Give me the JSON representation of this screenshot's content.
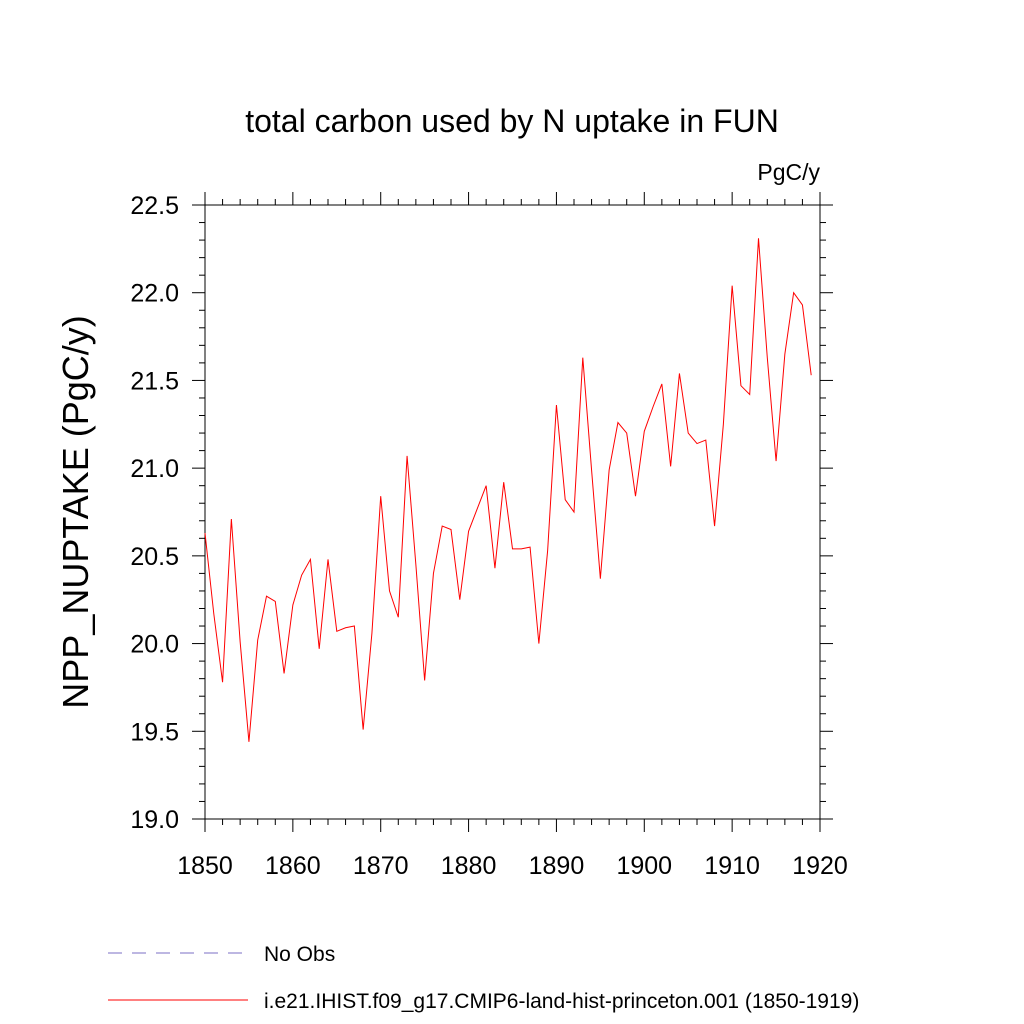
{
  "chart_data": {
    "type": "line",
    "title": "total carbon used by N uptake in FUN",
    "units": "PgC/y",
    "xlabel": "",
    "ylabel": "NPP_NUPTAKE  (PgC/y)",
    "xlim": [
      1850,
      1920
    ],
    "ylim": [
      19.0,
      22.5
    ],
    "xticks": [
      1850,
      1860,
      1870,
      1880,
      1890,
      1900,
      1910,
      1920
    ],
    "yticks": [
      19.0,
      19.5,
      20.0,
      20.5,
      21.0,
      21.5,
      22.0,
      22.5
    ],
    "ytick_labels": [
      "19.0",
      "19.5",
      "20.0",
      "20.5",
      "21.0",
      "21.5",
      "22.0",
      "22.5"
    ],
    "grid": false,
    "legend": "bottom",
    "series": [
      {
        "name": "No Obs",
        "color": "#7b6fc4",
        "dash": "dashed",
        "x": [],
        "values": []
      },
      {
        "name": "i.e21.IHIST.f09_g17.CMIP6-land-hist-princeton.001 (1850-1919)",
        "color": "#ff0000",
        "dash": "solid",
        "x": [
          1850,
          1851,
          1852,
          1853,
          1854,
          1855,
          1856,
          1857,
          1858,
          1859,
          1860,
          1861,
          1862,
          1863,
          1864,
          1865,
          1866,
          1867,
          1868,
          1869,
          1870,
          1871,
          1872,
          1873,
          1874,
          1875,
          1876,
          1877,
          1878,
          1879,
          1880,
          1881,
          1882,
          1883,
          1884,
          1885,
          1886,
          1887,
          1888,
          1889,
          1890,
          1891,
          1892,
          1893,
          1894,
          1895,
          1896,
          1897,
          1898,
          1899,
          1900,
          1901,
          1902,
          1903,
          1904,
          1905,
          1906,
          1907,
          1908,
          1909,
          1910,
          1911,
          1912,
          1913,
          1914,
          1915,
          1916,
          1917,
          1918,
          1919
        ],
        "values": [
          20.63,
          20.17,
          19.78,
          20.71,
          20.01,
          19.44,
          20.02,
          20.27,
          20.24,
          19.83,
          20.22,
          20.39,
          20.48,
          19.97,
          20.48,
          20.07,
          20.09,
          20.1,
          19.51,
          20.06,
          20.84,
          20.3,
          20.15,
          21.07,
          20.45,
          19.79,
          20.4,
          20.67,
          20.65,
          20.25,
          20.64,
          20.77,
          20.9,
          20.43,
          20.92,
          20.54,
          20.54,
          20.55,
          20.0,
          20.53,
          21.36,
          20.82,
          20.75,
          21.63,
          20.99,
          20.37,
          20.99,
          21.26,
          21.2,
          20.84,
          21.21,
          21.35,
          21.48,
          21.01,
          21.54,
          21.2,
          21.14,
          21.16,
          20.67,
          21.25,
          22.04,
          21.47,
          21.42,
          22.31,
          21.63,
          21.04,
          21.65,
          22.0,
          21.93,
          21.53
        ]
      }
    ]
  }
}
